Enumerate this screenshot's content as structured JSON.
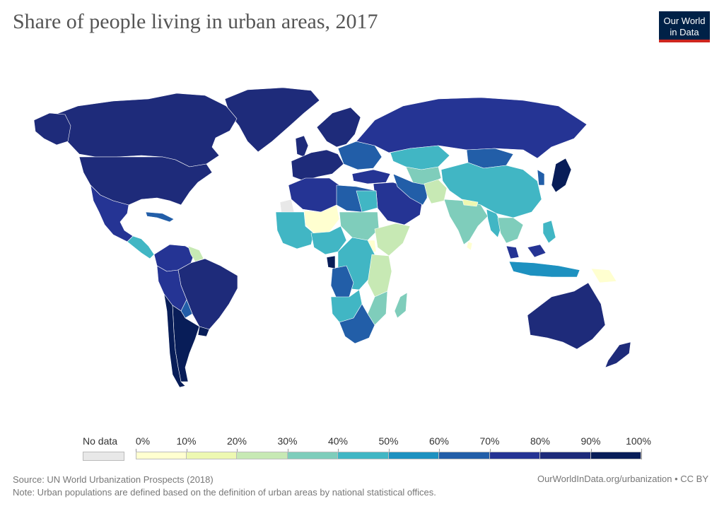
{
  "title": "Share of people living in urban areas, 2017",
  "logo": {
    "line1": "Our World",
    "line2": "in Data",
    "bg": "#002147",
    "accent": "#ce261e"
  },
  "legend": {
    "no_data_label": "No data",
    "no_data_color": "#e8e8e8",
    "ticks": [
      "0%",
      "10%",
      "20%",
      "30%",
      "40%",
      "50%",
      "60%",
      "70%",
      "80%",
      "90%",
      "100%"
    ],
    "colors": [
      "#ffffd0",
      "#edf8b1",
      "#c7e9b4",
      "#7fcdbb",
      "#41b6c4",
      "#1d91c0",
      "#225ea8",
      "#253494",
      "#1e2b7a",
      "#081d58"
    ]
  },
  "footer": {
    "source": "Source: UN World Urbanization Prospects (2018)",
    "note": "Note: Urban populations are defined based on the definition of urban areas by national statistical offices.",
    "credit": "OurWorldInData.org/urbanization • CC BY"
  }
}
